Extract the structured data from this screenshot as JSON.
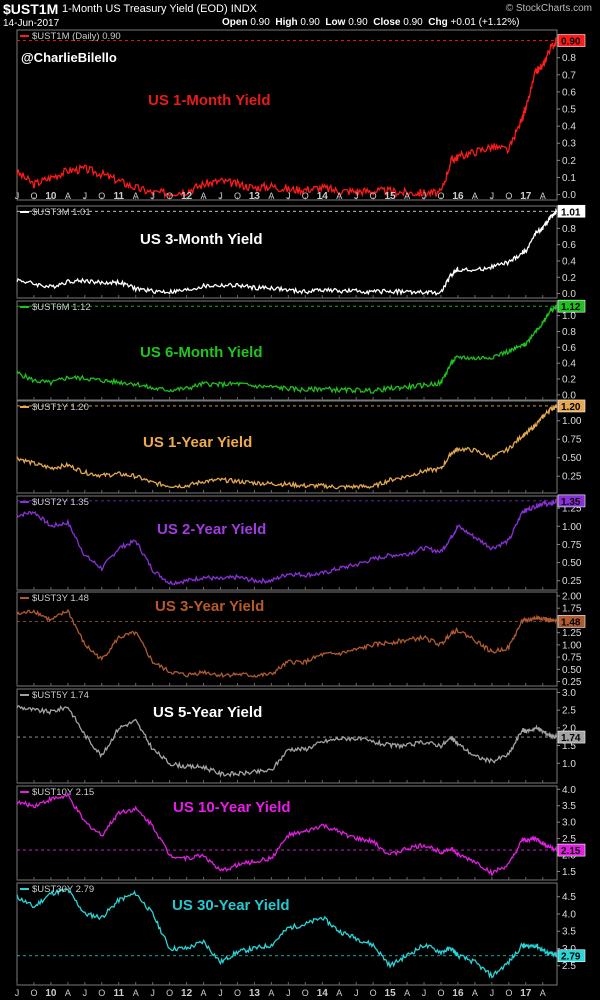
{
  "header": {
    "symbol": "$UST1M",
    "name": "1-Month US Treasury Yield (EOD)",
    "exchange": "INDX",
    "date": "14-Jun-2017",
    "source": "© StockCharts.com",
    "open_label": "Open",
    "open": "0.90",
    "high_label": "High",
    "high": "0.90",
    "low_label": "Low",
    "low": "0.90",
    "close_label": "Close",
    "close": "0.90",
    "chg_label": "Chg",
    "chg": "+0.01 (+1.12%)"
  },
  "watermark": "@CharlieBilello",
  "x_axis": {
    "labels": [
      "J",
      "O",
      "10",
      "A",
      "J",
      "O",
      "11",
      "A",
      "J",
      "O",
      "12",
      "A",
      "J",
      "O",
      "13",
      "A",
      "J",
      "O",
      "14",
      "A",
      "J",
      "O",
      "15",
      "A",
      "J",
      "O",
      "16",
      "A",
      "J",
      "O",
      "17",
      "A"
    ],
    "start": 2009.5,
    "end": 2017.46
  },
  "chart_data": [
    {
      "type": "line",
      "legend": "$UST1M (Daily) 0.90",
      "title": "US 1-Month Yield",
      "color": "#ff1a1a",
      "title_color": "#e81b1b",
      "last": "0.90",
      "ylim": [
        -0.02,
        0.95
      ],
      "yticks": [
        0,
        0.1,
        0.2,
        0.3,
        0.4,
        0.5,
        0.6,
        0.7,
        0.8
      ],
      "ytick_labels": [
        "0.0",
        "0.1",
        "0.2",
        "0.3",
        "0.4",
        "0.5",
        "0.6",
        "0.7",
        "0.8"
      ],
      "x": [
        2009.5,
        2009.75,
        2010,
        2010.25,
        2010.5,
        2010.75,
        2011,
        2011.25,
        2011.5,
        2011.75,
        2012,
        2012.25,
        2012.5,
        2012.75,
        2013,
        2013.25,
        2013.5,
        2013.75,
        2014,
        2014.25,
        2014.5,
        2014.75,
        2015,
        2015.25,
        2015.5,
        2015.75,
        2015.9,
        2016,
        2016.25,
        2016.5,
        2016.75,
        2016.95,
        2017,
        2017.15,
        2017.25,
        2017.35,
        2017.46
      ],
      "values": [
        0.13,
        0.06,
        0.1,
        0.14,
        0.15,
        0.12,
        0.08,
        0.04,
        0.01,
        0.01,
        0.02,
        0.06,
        0.08,
        0.06,
        0.04,
        0.05,
        0.03,
        0.03,
        0.04,
        0.02,
        0.02,
        0.02,
        0.02,
        0.01,
        0.01,
        0.01,
        0.2,
        0.22,
        0.25,
        0.28,
        0.26,
        0.45,
        0.5,
        0.72,
        0.75,
        0.85,
        0.9
      ]
    },
    {
      "type": "line",
      "legend": "$UST3M 1.01",
      "title": "US 3-Month Yield",
      "color": "#ffffff",
      "title_color": "#ffffff",
      "last": "1.01",
      "ylim": [
        -0.03,
        1.05
      ],
      "yticks": [
        0,
        0.2,
        0.4,
        0.6,
        0.8
      ],
      "ytick_labels": [
        "0.0",
        "0.2",
        "0.4",
        "0.6",
        "0.8"
      ],
      "x": [
        2009.5,
        2009.75,
        2010,
        2010.25,
        2010.5,
        2010.75,
        2011,
        2011.25,
        2011.5,
        2011.75,
        2012,
        2012.25,
        2012.5,
        2012.75,
        2013,
        2013.25,
        2013.5,
        2013.75,
        2014,
        2014.25,
        2014.5,
        2014.75,
        2015,
        2015.25,
        2015.5,
        2015.75,
        2015.9,
        2016,
        2016.25,
        2016.5,
        2016.75,
        2016.95,
        2017,
        2017.15,
        2017.25,
        2017.35,
        2017.46
      ],
      "values": [
        0.17,
        0.12,
        0.08,
        0.15,
        0.16,
        0.13,
        0.14,
        0.06,
        0.03,
        0.02,
        0.04,
        0.09,
        0.1,
        0.1,
        0.07,
        0.07,
        0.04,
        0.02,
        0.05,
        0.03,
        0.03,
        0.02,
        0.03,
        0.02,
        0.01,
        0.01,
        0.23,
        0.3,
        0.28,
        0.33,
        0.38,
        0.5,
        0.52,
        0.75,
        0.8,
        0.92,
        1.01
      ]
    },
    {
      "type": "line",
      "legend": "$UST6M 1.12",
      "title": "US 6-Month Yield",
      "color": "#20c020",
      "title_color": "#1ec71e",
      "last": "1.12",
      "ylim": [
        -0.04,
        1.16
      ],
      "yticks": [
        0,
        0.2,
        0.4,
        0.6,
        0.8,
        1.0
      ],
      "ytick_labels": [
        "0.0",
        "0.2",
        "0.4",
        "0.6",
        "0.8",
        "1.0"
      ],
      "x": [
        2009.5,
        2009.75,
        2010,
        2010.25,
        2010.5,
        2010.75,
        2011,
        2011.25,
        2011.5,
        2011.75,
        2012,
        2012.25,
        2012.5,
        2012.75,
        2013,
        2013.25,
        2013.5,
        2013.75,
        2014,
        2014.25,
        2014.5,
        2014.75,
        2015,
        2015.25,
        2015.5,
        2015.75,
        2015.9,
        2016,
        2016.25,
        2016.5,
        2016.75,
        2016.95,
        2017,
        2017.15,
        2017.25,
        2017.35,
        2017.46
      ],
      "values": [
        0.28,
        0.18,
        0.15,
        0.22,
        0.21,
        0.18,
        0.16,
        0.14,
        0.08,
        0.06,
        0.08,
        0.14,
        0.13,
        0.14,
        0.11,
        0.1,
        0.08,
        0.06,
        0.08,
        0.06,
        0.06,
        0.05,
        0.08,
        0.1,
        0.12,
        0.15,
        0.4,
        0.48,
        0.46,
        0.48,
        0.55,
        0.62,
        0.64,
        0.82,
        0.9,
        1.05,
        1.12
      ]
    },
    {
      "type": "line",
      "legend": "$UST1Y 1.20",
      "title": "US 1-Year Yield",
      "color": "#e3a850",
      "title_color": "#f0ac4b",
      "last": "1.20",
      "ylim": [
        0.05,
        1.24
      ],
      "yticks": [
        0.25,
        0.5,
        0.75,
        1.0
      ],
      "ytick_labels": [
        "0.25",
        "0.50",
        "0.75",
        "1.00"
      ],
      "x": [
        2009.5,
        2009.75,
        2010,
        2010.25,
        2010.5,
        2010.75,
        2011,
        2011.25,
        2011.5,
        2011.75,
        2012,
        2012.25,
        2012.5,
        2012.75,
        2013,
        2013.25,
        2013.5,
        2013.75,
        2014,
        2014.25,
        2014.5,
        2014.75,
        2015,
        2015.25,
        2015.5,
        2015.75,
        2015.9,
        2016,
        2016.25,
        2016.5,
        2016.75,
        2016.95,
        2017,
        2017.15,
        2017.25,
        2017.35,
        2017.46
      ],
      "values": [
        0.5,
        0.42,
        0.36,
        0.4,
        0.3,
        0.26,
        0.28,
        0.25,
        0.16,
        0.12,
        0.12,
        0.18,
        0.2,
        0.18,
        0.16,
        0.15,
        0.14,
        0.12,
        0.12,
        0.1,
        0.11,
        0.11,
        0.2,
        0.25,
        0.32,
        0.35,
        0.56,
        0.62,
        0.6,
        0.5,
        0.62,
        0.8,
        0.82,
        0.95,
        1.05,
        1.15,
        1.2
      ]
    },
    {
      "type": "line",
      "legend": "$UST2Y 1.35",
      "title": "US 2-Year Yield",
      "color": "#8a30d8",
      "title_color": "#9f3de0",
      "last": "1.35",
      "ylim": [
        0.15,
        1.39
      ],
      "yticks": [
        0.25,
        0.5,
        0.75,
        1.0,
        1.25
      ],
      "ytick_labels": [
        "0.25",
        "0.50",
        "0.75",
        "1.00",
        "1.25"
      ],
      "x": [
        2009.5,
        2009.75,
        2010,
        2010.25,
        2010.5,
        2010.75,
        2011,
        2011.25,
        2011.5,
        2011.75,
        2012,
        2012.25,
        2012.5,
        2012.75,
        2013,
        2013.25,
        2013.5,
        2013.75,
        2014,
        2014.25,
        2014.5,
        2014.75,
        2015,
        2015.25,
        2015.5,
        2015.75,
        2015.9,
        2016,
        2016.25,
        2016.5,
        2016.75,
        2016.95,
        2017,
        2017.15,
        2017.25,
        2017.35,
        2017.46
      ],
      "values": [
        1.15,
        1.2,
        1.0,
        1.05,
        0.6,
        0.42,
        0.7,
        0.8,
        0.4,
        0.22,
        0.25,
        0.3,
        0.27,
        0.3,
        0.25,
        0.25,
        0.35,
        0.33,
        0.35,
        0.42,
        0.47,
        0.55,
        0.6,
        0.62,
        0.7,
        0.65,
        0.85,
        1.0,
        0.85,
        0.7,
        0.8,
        1.2,
        1.22,
        1.28,
        1.32,
        1.3,
        1.35
      ]
    },
    {
      "type": "line",
      "legend": "$UST3Y 1.48",
      "title": "US 3-Year Yield",
      "color": "#b05a30",
      "title_color": "#b85a2a",
      "last": "1.48",
      "ylim": [
        0.2,
        2.04
      ],
      "yticks": [
        0.25,
        0.5,
        0.75,
        1.0,
        1.25,
        1.5,
        1.75,
        2.0
      ],
      "ytick_labels": [
        "0.25",
        "0.50",
        "0.75",
        "1.00",
        "1.25",
        "1.50",
        "1.75",
        "2.00"
      ],
      "x": [
        2009.5,
        2009.75,
        2010,
        2010.25,
        2010.5,
        2010.75,
        2011,
        2011.25,
        2011.5,
        2011.75,
        2012,
        2012.25,
        2012.5,
        2012.75,
        2013,
        2013.25,
        2013.5,
        2013.75,
        2014,
        2014.25,
        2014.5,
        2014.75,
        2015,
        2015.25,
        2015.5,
        2015.75,
        2015.9,
        2016,
        2016.25,
        2016.5,
        2016.75,
        2016.95,
        2017,
        2017.15,
        2017.25,
        2017.35,
        2017.46
      ],
      "values": [
        1.62,
        1.7,
        1.5,
        1.7,
        1.0,
        0.7,
        1.15,
        1.25,
        0.65,
        0.45,
        0.38,
        0.45,
        0.38,
        0.4,
        0.37,
        0.4,
        0.65,
        0.65,
        0.8,
        0.82,
        0.9,
        1.0,
        1.05,
        1.1,
        1.15,
        1.0,
        1.25,
        1.3,
        1.1,
        0.85,
        0.95,
        1.5,
        1.5,
        1.55,
        1.55,
        1.5,
        1.48
      ]
    },
    {
      "type": "line",
      "legend": "$UST5Y 1.74",
      "title": "US 5-Year Yield",
      "color": "#a3a3a3",
      "title_color": "#ffffff",
      "last": "1.74",
      "ylim": [
        0.5,
        3.04
      ],
      "yticks": [
        1.0,
        1.5,
        2.0,
        2.5,
        3.0
      ],
      "ytick_labels": [
        "1.0",
        "1.5",
        "2.0",
        "2.5",
        "3.0"
      ],
      "x": [
        2009.5,
        2009.75,
        2010,
        2010.25,
        2010.5,
        2010.75,
        2011,
        2011.25,
        2011.5,
        2011.75,
        2012,
        2012.25,
        2012.5,
        2012.75,
        2013,
        2013.25,
        2013.5,
        2013.75,
        2014,
        2014.25,
        2014.5,
        2014.75,
        2015,
        2015.25,
        2015.5,
        2015.75,
        2015.9,
        2016,
        2016.25,
        2016.5,
        2016.75,
        2016.95,
        2017,
        2017.15,
        2017.25,
        2017.35,
        2017.46
      ],
      "values": [
        2.6,
        2.5,
        2.45,
        2.6,
        1.8,
        1.2,
        2.0,
        2.2,
        1.4,
        1.0,
        0.9,
        0.9,
        0.7,
        0.7,
        0.75,
        0.8,
        1.4,
        1.4,
        1.6,
        1.7,
        1.7,
        1.6,
        1.5,
        1.5,
        1.6,
        1.5,
        1.7,
        1.55,
        1.2,
        1.05,
        1.25,
        1.95,
        1.9,
        2.0,
        1.9,
        1.8,
        1.74
      ]
    },
    {
      "type": "line",
      "legend": "$UST10Y 2.15",
      "title": "US 10-Year Yield",
      "color": "#e020e0",
      "title_color": "#e81ee8",
      "last": "2.15",
      "ylim": [
        1.3,
        4.04
      ],
      "yticks": [
        1.5,
        2.0,
        2.5,
        3.0,
        3.5,
        4.0
      ],
      "ytick_labels": [
        "1.5",
        "2.0",
        "2.5",
        "3.0",
        "3.5",
        "4.0"
      ],
      "x": [
        2009.5,
        2009.75,
        2010,
        2010.25,
        2010.5,
        2010.75,
        2011,
        2011.25,
        2011.5,
        2011.75,
        2012,
        2012.25,
        2012.5,
        2012.75,
        2013,
        2013.25,
        2013.5,
        2013.75,
        2014,
        2014.25,
        2014.5,
        2014.75,
        2015,
        2015.25,
        2015.5,
        2015.75,
        2015.9,
        2016,
        2016.25,
        2016.5,
        2016.75,
        2016.95,
        2017,
        2017.15,
        2017.25,
        2017.35,
        2017.46
      ],
      "values": [
        3.6,
        3.5,
        3.7,
        3.8,
        3.0,
        2.6,
        3.3,
        3.4,
        2.9,
        2.0,
        1.9,
        2.0,
        1.5,
        1.7,
        1.8,
        1.9,
        2.6,
        2.7,
        2.9,
        2.7,
        2.5,
        2.4,
        2.0,
        2.2,
        2.3,
        2.1,
        2.2,
        2.0,
        1.8,
        1.45,
        1.7,
        2.45,
        2.45,
        2.5,
        2.35,
        2.25,
        2.15
      ]
    },
    {
      "type": "line",
      "legend": "$UST30Y 2.79",
      "title": "US 30-Year Yield",
      "color": "#2ad4d8",
      "title_color": "#26c8d0",
      "last": "2.79",
      "ylim": [
        2.0,
        4.84
      ],
      "yticks": [
        2.5,
        3.0,
        3.5,
        4.0,
        4.5
      ],
      "ytick_labels": [
        "2.5",
        "3.0",
        "3.5",
        "4.0",
        "4.5"
      ],
      "x": [
        2009.5,
        2009.75,
        2010,
        2010.25,
        2010.5,
        2010.75,
        2011,
        2011.25,
        2011.5,
        2011.75,
        2012,
        2012.25,
        2012.5,
        2012.75,
        2013,
        2013.25,
        2013.5,
        2013.75,
        2014,
        2014.25,
        2014.5,
        2014.75,
        2015,
        2015.25,
        2015.5,
        2015.75,
        2015.9,
        2016,
        2016.25,
        2016.5,
        2016.75,
        2016.95,
        2017,
        2017.15,
        2017.25,
        2017.35,
        2017.46
      ],
      "values": [
        4.5,
        4.2,
        4.6,
        4.7,
        4.0,
        3.9,
        4.4,
        4.6,
        4.0,
        3.0,
        3.0,
        3.2,
        2.6,
        2.9,
        3.0,
        3.1,
        3.6,
        3.7,
        3.9,
        3.5,
        3.3,
        3.1,
        2.5,
        2.8,
        3.1,
        2.9,
        3.0,
        2.8,
        2.6,
        2.2,
        2.6,
        3.1,
        3.05,
        3.1,
        2.95,
        2.85,
        2.79
      ]
    }
  ]
}
